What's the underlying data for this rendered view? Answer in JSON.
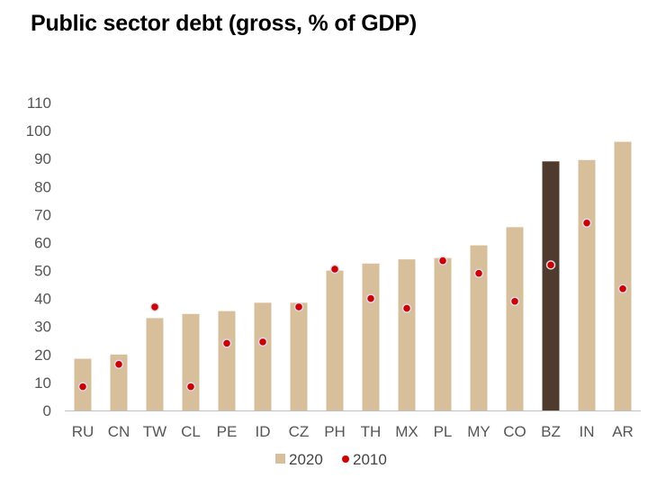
{
  "chart_data": {
    "type": "bar",
    "title": "Public sector debt (gross, % of GDP)",
    "categories": [
      "RU",
      "CN",
      "TW",
      "CL",
      "PE",
      "ID",
      "CZ",
      "PH",
      "TH",
      "MX",
      "PL",
      "MY",
      "CO",
      "BZ",
      "IN",
      "AR"
    ],
    "series": [
      {
        "name": "2020",
        "kind": "bar",
        "color": "#d8bf9b",
        "values": [
          18.5,
          20,
          33,
          34.5,
          35.5,
          38.5,
          38.5,
          50,
          52.5,
          54,
          54.5,
          59,
          65.5,
          89,
          89.5,
          96
        ]
      },
      {
        "name": "2010",
        "kind": "point",
        "color": "#cc0000",
        "values": [
          8.5,
          16.5,
          37,
          8.5,
          24,
          24.5,
          37,
          50.5,
          40,
          36.5,
          53.5,
          49,
          39,
          52,
          67,
          43.5
        ]
      }
    ],
    "highlight": {
      "category": "BZ",
      "color": "#4e3b2e"
    },
    "ylim": [
      0,
      110
    ],
    "yticks": [
      "0",
      "10",
      "20",
      "30",
      "40",
      "50",
      "60",
      "70",
      "80",
      "90",
      "100",
      "110"
    ],
    "xlabel": "",
    "ylabel": "",
    "grid": false,
    "legend_position": "bottom"
  }
}
